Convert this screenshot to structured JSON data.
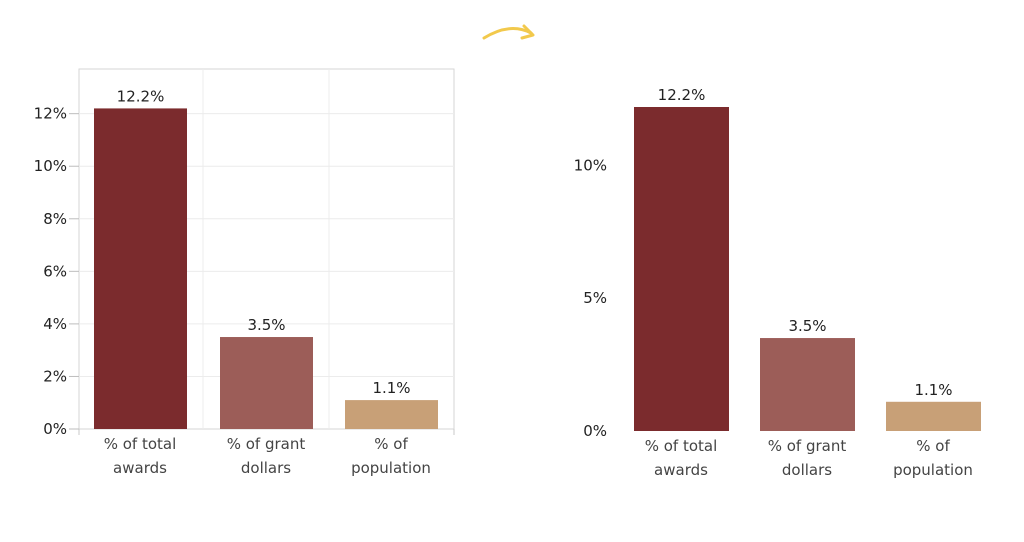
{
  "colors": {
    "awards": "#7b2b2d",
    "grants": "#9c5d58",
    "population": "#c8a077",
    "arrow": "#f2c94c"
  },
  "chart_data": [
    {
      "type": "bar",
      "categories": [
        [
          "% of total",
          "awards"
        ],
        [
          "% of grant",
          "dollars"
        ],
        [
          "% of",
          "population"
        ]
      ],
      "values": [
        12.2,
        3.5,
        1.1
      ],
      "data_labels": [
        "12.2%",
        "3.5%",
        "1.1%"
      ],
      "yticks": [
        0,
        2,
        4,
        6,
        8,
        10,
        12
      ],
      "ytick_labels": [
        "0%",
        "2%",
        "4%",
        "6%",
        "8%",
        "10%",
        "12%"
      ],
      "ylim": [
        0,
        13.7
      ],
      "grid": true,
      "title": "",
      "xlabel": "",
      "ylabel": ""
    },
    {
      "type": "bar",
      "categories": [
        [
          "% of total",
          "awards"
        ],
        [
          "% of grant",
          "dollars"
        ],
        [
          "% of",
          "population"
        ]
      ],
      "values": [
        12.2,
        3.5,
        1.1
      ],
      "data_labels": [
        "12.2%",
        "3.5%",
        "1.1%"
      ],
      "yticks": [
        0,
        5,
        10
      ],
      "ytick_labels": [
        "0%",
        "5%",
        "10%"
      ],
      "ylim": [
        0,
        12.2
      ],
      "grid": false,
      "title": "",
      "xlabel": "",
      "ylabel": ""
    }
  ]
}
